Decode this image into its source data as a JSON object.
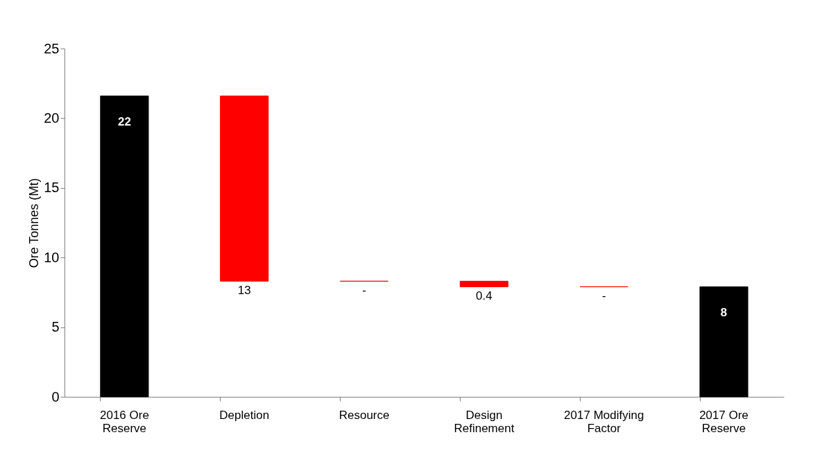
{
  "chart_data": {
    "type": "bar",
    "ylabel": "Ore Tonnes (Mt)",
    "categories": [
      "2016 Ore Reserve",
      "Depletion",
      "Resource",
      "Design Refinement",
      "2017 Modifying Factor",
      "2017 Ore Reserve"
    ],
    "values": [
      21.6,
      -13.3,
      0,
      -0.4,
      0,
      7.9
    ],
    "base": [
      0,
      21.6,
      8.3,
      8.3,
      7.9,
      0
    ],
    "colors": [
      "#000000",
      "#ff0000",
      "#ff0000",
      "#ff0000",
      "#ff0000",
      "#000000"
    ],
    "value_labels": [
      "22",
      "13",
      "-",
      "0.4",
      "-",
      "8"
    ],
    "ylim": [
      0,
      25
    ],
    "yticks": [
      0,
      5,
      10,
      15,
      20,
      25
    ],
    "grid": false
  }
}
